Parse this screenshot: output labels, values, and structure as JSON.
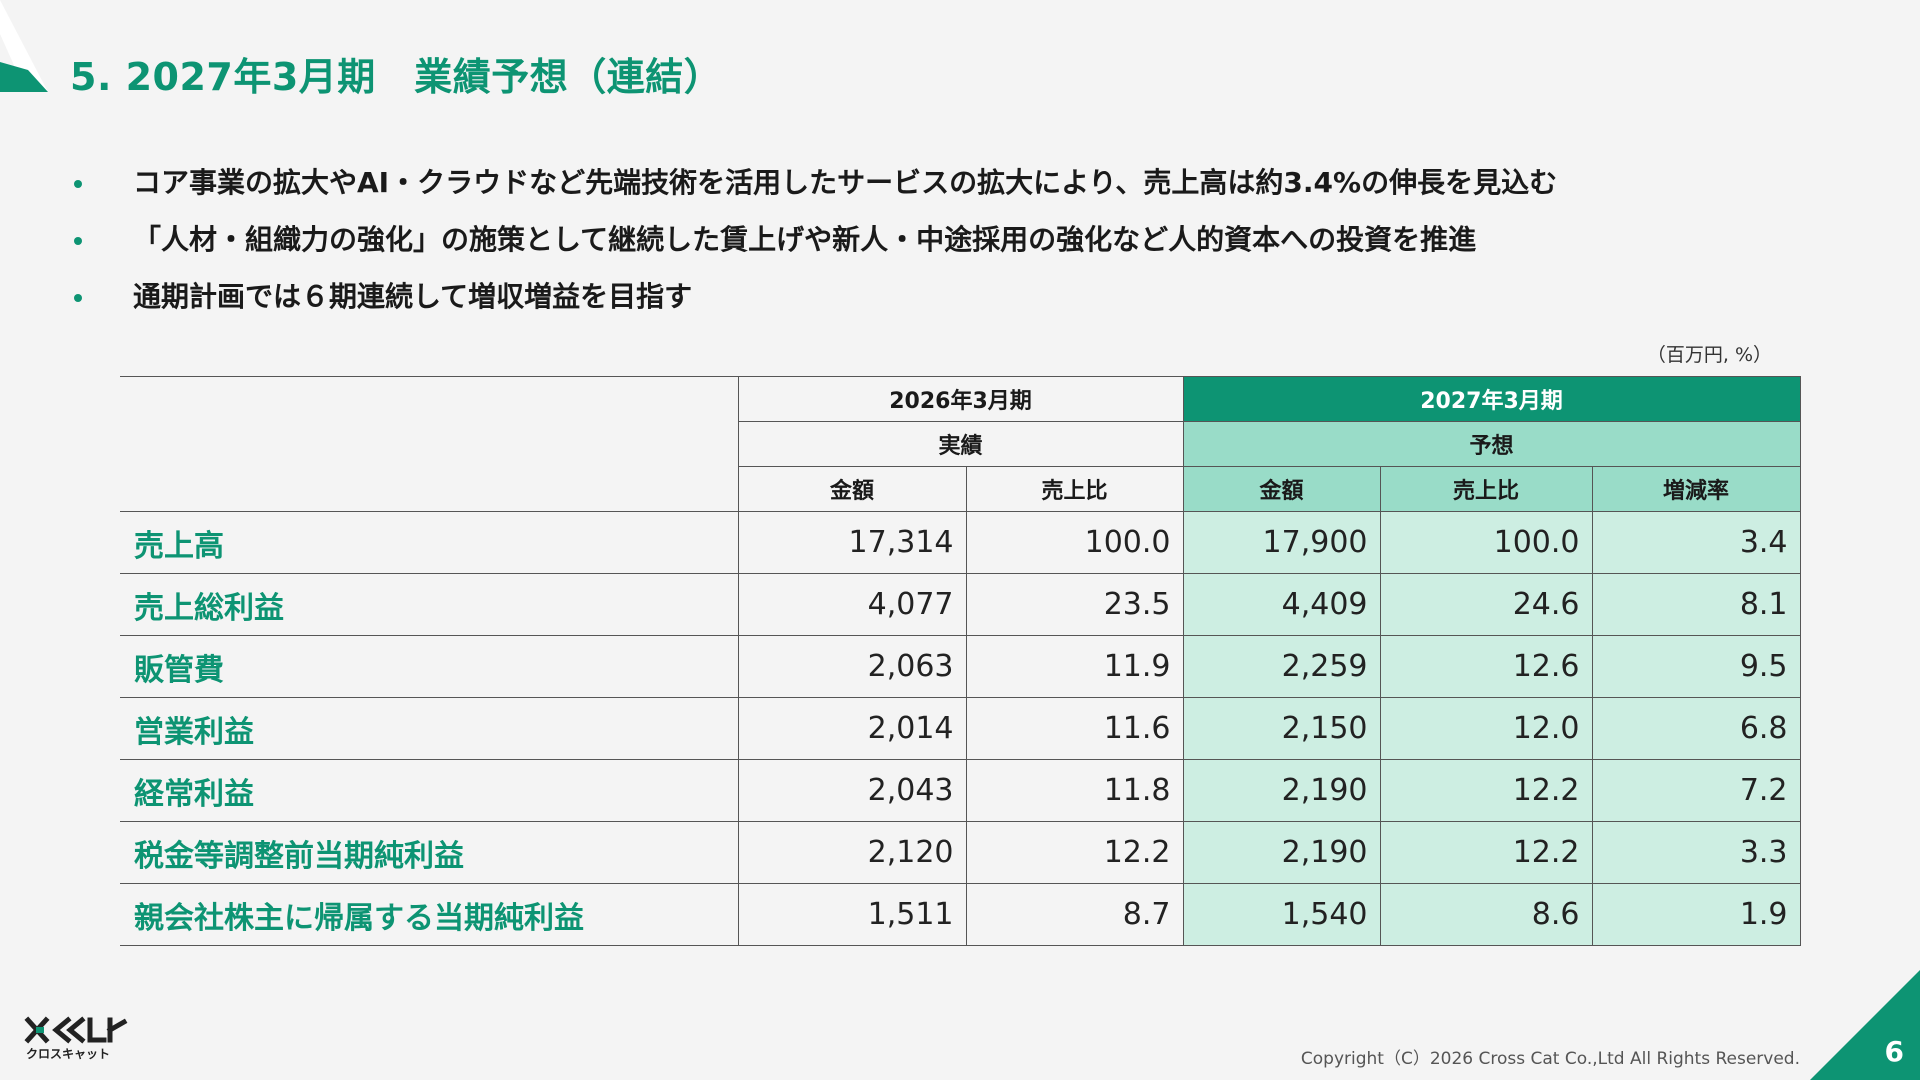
{
  "slide": {
    "title": "5. 2027年3月期　業績予想（連結）",
    "page_number": "6"
  },
  "bullets": [
    "コア事業の拡大やAI・クラウドなど先端技術を活用したサービスの拡大により、売上高は約3.4%の伸長を見込む",
    "「人材・組織力の強化」の施策として継続した賃上げや新人・中途採用の強化など人的資本への投資を推進",
    "通期計画では６期連続して増収増益を目指す"
  ],
  "table": {
    "unit": "（百万円, %）",
    "period_actual": "2026年3月期",
    "period_forecast": "2027年3月期",
    "label_actual": "実績",
    "label_forecast": "予想",
    "col_amount": "金額",
    "col_ratio": "売上比",
    "col_change": "増減率",
    "rows": [
      {
        "label": "売上高",
        "act_amount": "17,314",
        "act_ratio": "100.0",
        "fc_amount": "17,900",
        "fc_ratio": "100.0",
        "fc_change": "3.4"
      },
      {
        "label": "売上総利益",
        "act_amount": "4,077",
        "act_ratio": "23.5",
        "fc_amount": "4,409",
        "fc_ratio": "24.6",
        "fc_change": "8.1"
      },
      {
        "label": "販管費",
        "act_amount": "2,063",
        "act_ratio": "11.9",
        "fc_amount": "2,259",
        "fc_ratio": "12.6",
        "fc_change": "9.5"
      },
      {
        "label": "営業利益",
        "act_amount": "2,014",
        "act_ratio": "11.6",
        "fc_amount": "2,150",
        "fc_ratio": "12.0",
        "fc_change": "6.8"
      },
      {
        "label": "経常利益",
        "act_amount": "2,043",
        "act_ratio": "11.8",
        "fc_amount": "2,190",
        "fc_ratio": "12.2",
        "fc_change": "7.2"
      },
      {
        "label": "税金等調整前当期純利益",
        "act_amount": "2,120",
        "act_ratio": "12.2",
        "fc_amount": "2,190",
        "fc_ratio": "12.2",
        "fc_change": "3.3"
      },
      {
        "label": "親会社株主に帰属する当期純利益",
        "act_amount": "1,511",
        "act_ratio": "8.7",
        "fc_amount": "1,540",
        "fc_ratio": "8.6",
        "fc_change": "1.9"
      }
    ]
  },
  "footer": {
    "logo_text": "クロスキャット",
    "copyright": "Copyright（C）2026 Cross Cat Co.,Ltd All Rights Reserved."
  },
  "colors": {
    "accent": "#0d9473",
    "forecast_header": "#99dcc8",
    "forecast_cell": "#cdeee2"
  }
}
